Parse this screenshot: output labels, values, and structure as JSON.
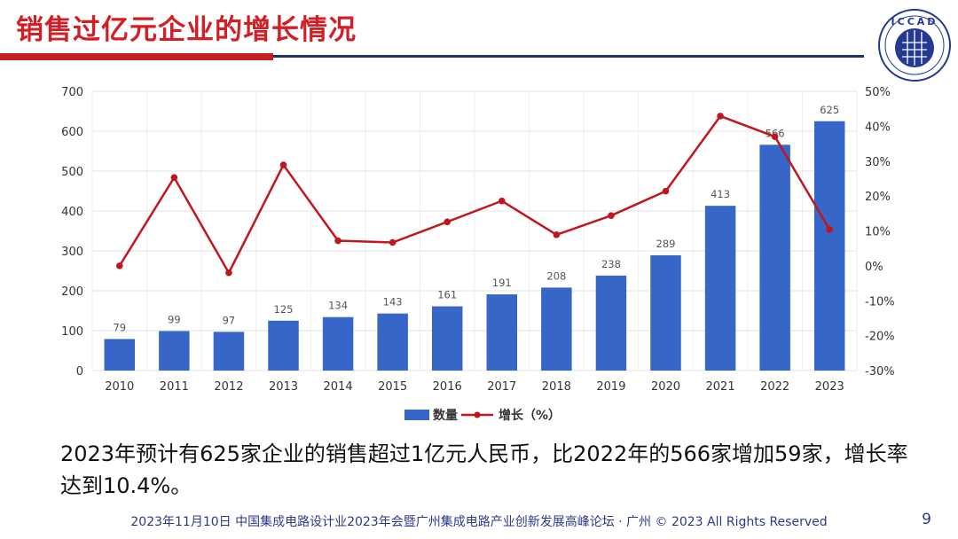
{
  "slide": {
    "title": "销售过亿元企业的增长情况",
    "summary": "2023年预计有625家企业的销售超过1亿元人民币，比2022年的566家增加59家，增长率达到10.4%。",
    "footer": "2023年11月10日  中国集成电路设计业2023年会暨广州集成电路产业创新发展高峰论坛 · 广州 © 2023 All Rights Reserved",
    "page_number": "9",
    "logo_text": "ICCAD"
  },
  "colors": {
    "title": "#d21f25",
    "bar": "#3566c8",
    "line": "#c0171e",
    "footer": "#2b3a8c"
  },
  "chart_data": {
    "type": "bar",
    "categories": [
      "2010",
      "2011",
      "2012",
      "2013",
      "2014",
      "2015",
      "2016",
      "2017",
      "2018",
      "2019",
      "2020",
      "2021",
      "2022",
      "2023"
    ],
    "series": [
      {
        "name": "数量",
        "type": "bar",
        "axis": "left",
        "values": [
          79,
          99,
          97,
          125,
          134,
          143,
          161,
          191,
          208,
          238,
          289,
          413,
          566,
          625
        ]
      },
      {
        "name": "增长（%）",
        "type": "line",
        "axis": "right",
        "values": [
          0,
          25.3,
          -2,
          28.9,
          7.2,
          6.7,
          12.6,
          18.6,
          8.9,
          14.4,
          21.4,
          42.9,
          37,
          10.4
        ]
      }
    ],
    "y_left": {
      "lim": [
        0,
        700
      ],
      "ticks": [
        "0",
        "100",
        "200",
        "300",
        "400",
        "500",
        "600",
        "700"
      ]
    },
    "y_right": {
      "lim": [
        -30,
        50
      ],
      "ticks": [
        "-30%",
        "-20%",
        "-10%",
        "0%",
        "10%",
        "20%",
        "30%",
        "40%",
        "50%"
      ]
    },
    "grid": true,
    "legend": "bottom"
  }
}
